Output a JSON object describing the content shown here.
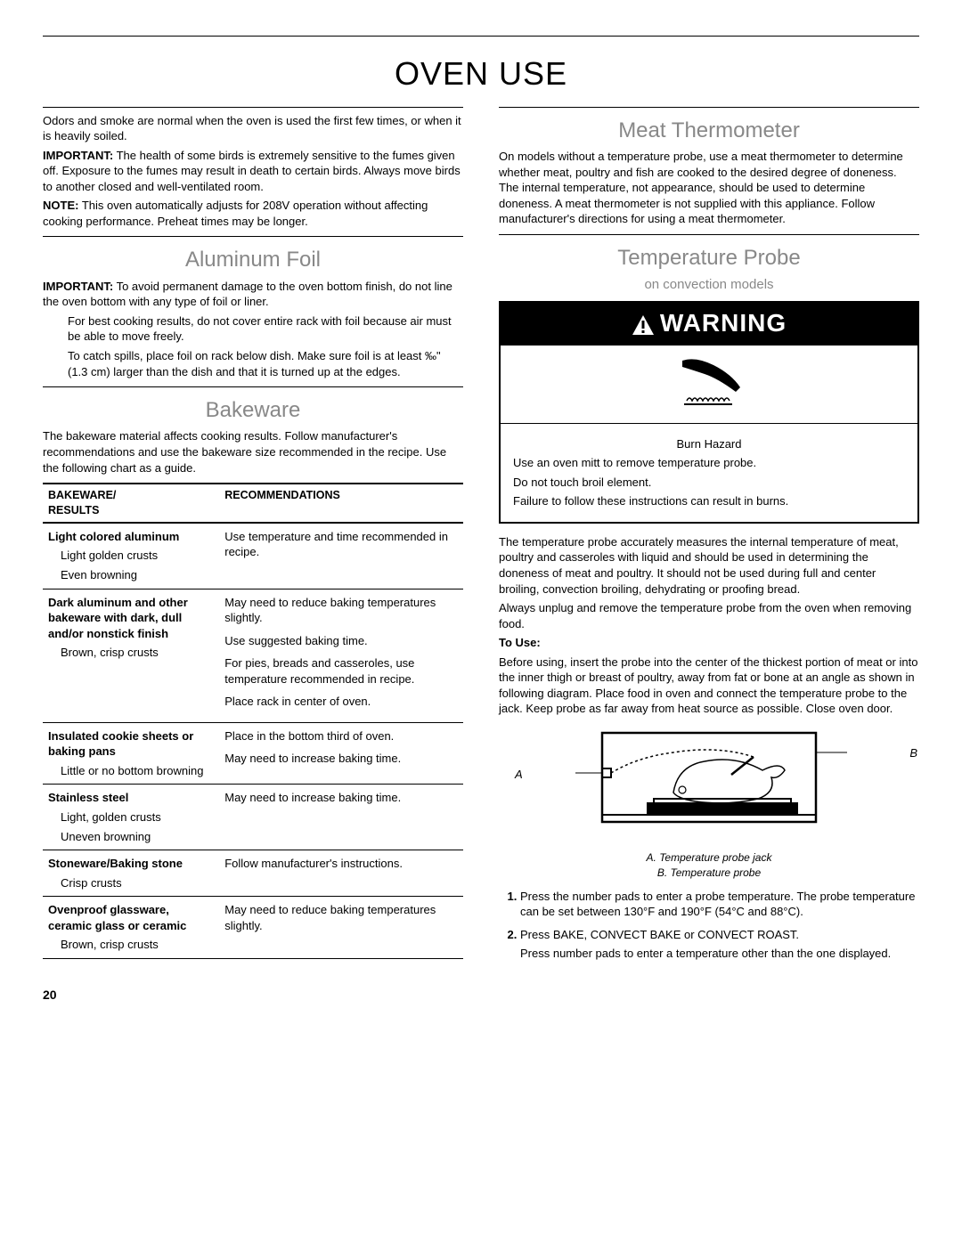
{
  "pageTitle": "OVEN USE",
  "left": {
    "intro1": "Odors and smoke are normal when the oven is used the first few times, or when it is heavily soiled.",
    "important1_label": "IMPORTANT:",
    "important1": " The health of some birds is extremely sensitive to the fumes given off. Exposure to the fumes may result in death to certain birds. Always move birds to another closed and well-ventilated room.",
    "note1_label": "NOTE:",
    "note1": " This oven automatically adjusts for 208V operation without affecting cooking performance. Preheat times may be longer.",
    "aluminum": {
      "title": "Aluminum Foil",
      "important_label": "IMPORTANT:",
      "important": " To avoid permanent damage to the oven bottom finish, do not line the oven bottom with any type of foil or liner.",
      "p1": "For best cooking results, do not cover entire rack with foil because air must be able to move freely.",
      "p2": "To catch spills, place foil on rack below dish. Make sure foil is at least ‰\" (1.3 cm) larger than the dish and that it is turned up at the edges."
    },
    "bakeware": {
      "title": "Bakeware",
      "intro": "The bakeware material affects cooking results. Follow manufacturer's recommendations and use the bakeware size recommended in the recipe. Use the following chart as a guide.",
      "headers": {
        "col1": "BAKEWARE/\nRESULTS",
        "col2": "RECOMMENDATIONS"
      },
      "rows": [
        {
          "name": "Light colored aluminum",
          "results": [
            "Light golden crusts",
            "Even browning"
          ],
          "recs": [
            "Use temperature and time recommended in recipe."
          ]
        },
        {
          "name": "Dark aluminum and other bakeware with dark, dull and/or nonstick finish",
          "results": [
            "Brown, crisp crusts"
          ],
          "recs": [
            "May need to reduce baking temperatures slightly.",
            "Use suggested baking time.",
            "For pies, breads and casseroles, use temperature recommended in recipe.",
            "Place rack in center of oven."
          ]
        },
        {
          "name": "Insulated cookie sheets or baking pans",
          "results": [
            "Little or no bottom browning"
          ],
          "recs": [
            "Place in the bottom third of oven.",
            "May need to increase baking time."
          ]
        },
        {
          "name": "Stainless steel",
          "results": [
            "Light, golden crusts",
            "Uneven browning"
          ],
          "recs": [
            "May need to increase baking time."
          ]
        },
        {
          "name": "Stoneware/Baking stone",
          "results": [
            "Crisp crusts"
          ],
          "recs": [
            "Follow manufacturer's instructions."
          ]
        },
        {
          "name": "Ovenproof glassware, ceramic glass or ceramic",
          "results": [
            "Brown, crisp crusts"
          ],
          "recs": [
            "May need to reduce baking temperatures slightly."
          ]
        }
      ]
    }
  },
  "right": {
    "meat": {
      "title": "Meat Thermometer",
      "text": "On models without a temperature probe, use a meat thermometer to determine whether meat, poultry and fish are cooked to the desired degree of doneness. The internal temperature, not appearance, should be used to determine doneness. A meat thermometer is not supplied with this appliance. Follow manufacturer's directions for using a meat thermometer."
    },
    "probe": {
      "title": "Temperature Probe",
      "subtitle": "on convection models",
      "warning": {
        "header": "WARNING",
        "hazard": "Burn Hazard",
        "line1": "Use an oven mitt to remove temperature probe.",
        "line2": "Do not touch broil element.",
        "line3": "Failure to follow these instructions can result in burns."
      },
      "p1": "The temperature probe accurately measures the internal temperature of meat, poultry and casseroles with liquid and should be used in determining the doneness of meat and poultry. It should not be used during full and center broiling, convection broiling, dehydrating or proofing bread.",
      "p2": "Always unplug and remove the temperature probe from the oven when removing food.",
      "touse_label": "To Use:",
      "touse_text": "Before using, insert the probe into the center of the thickest portion of meat or into the inner thigh or breast of poultry, away from fat or bone at an angle as shown in following diagram. Place food in oven and connect the temperature probe to the jack. Keep probe as far away from heat source as possible. Close oven door.",
      "label_a": "A",
      "label_b": "B",
      "caption_a": "A. Temperature probe jack",
      "caption_b": "B. Temperature probe",
      "steps": [
        {
          "main": "Press the number pads to enter a probe temperature. The probe temperature can be set between 130°F and 190°F (54°C and 88°C)."
        },
        {
          "main": "Press BAKE, CONVECT BAKE or CONVECT ROAST.",
          "sub": "Press number pads to enter a temperature other than the one displayed."
        }
      ]
    }
  },
  "pageNumber": "20"
}
